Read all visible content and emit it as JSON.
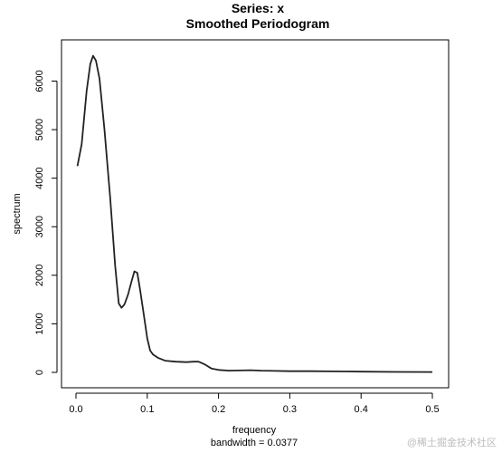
{
  "chart_data": {
    "type": "line",
    "title": "Series: x",
    "subtitle": "Smoothed Periodogram",
    "xlabel": "frequency",
    "xsublabel": "bandwidth = 0.0377",
    "ylabel": "spectrum",
    "xlim": [
      0,
      0.5
    ],
    "ylim": [
      0,
      6500
    ],
    "x_ticks": [
      "0.0",
      "0.1",
      "0.2",
      "0.3",
      "0.4",
      "0.5"
    ],
    "y_ticks": [
      "0",
      "1000",
      "2000",
      "3000",
      "4000",
      "5000",
      "6000"
    ],
    "grid": false,
    "series": [
      {
        "x": [
          0.002,
          0.008,
          0.015,
          0.02,
          0.024,
          0.028,
          0.033,
          0.04,
          0.048,
          0.055,
          0.06,
          0.064,
          0.068,
          0.073,
          0.078,
          0.082,
          0.086,
          0.09,
          0.095,
          0.1,
          0.104,
          0.108,
          0.115,
          0.125,
          0.14,
          0.155,
          0.165,
          0.172,
          0.18,
          0.19,
          0.2,
          0.215,
          0.23,
          0.245,
          0.26,
          0.28,
          0.3,
          0.33,
          0.36,
          0.4,
          0.45,
          0.5
        ],
        "y": [
          4250,
          4700,
          5800,
          6350,
          6520,
          6420,
          6050,
          5000,
          3600,
          2200,
          1420,
          1330,
          1400,
          1600,
          1880,
          2080,
          2050,
          1700,
          1200,
          700,
          450,
          370,
          300,
          240,
          220,
          210,
          220,
          220,
          170,
          80,
          50,
          35,
          40,
          45,
          35,
          30,
          25,
          25,
          20,
          15,
          10,
          8
        ]
      }
    ],
    "watermark": "@稀土掘金技术社区"
  }
}
